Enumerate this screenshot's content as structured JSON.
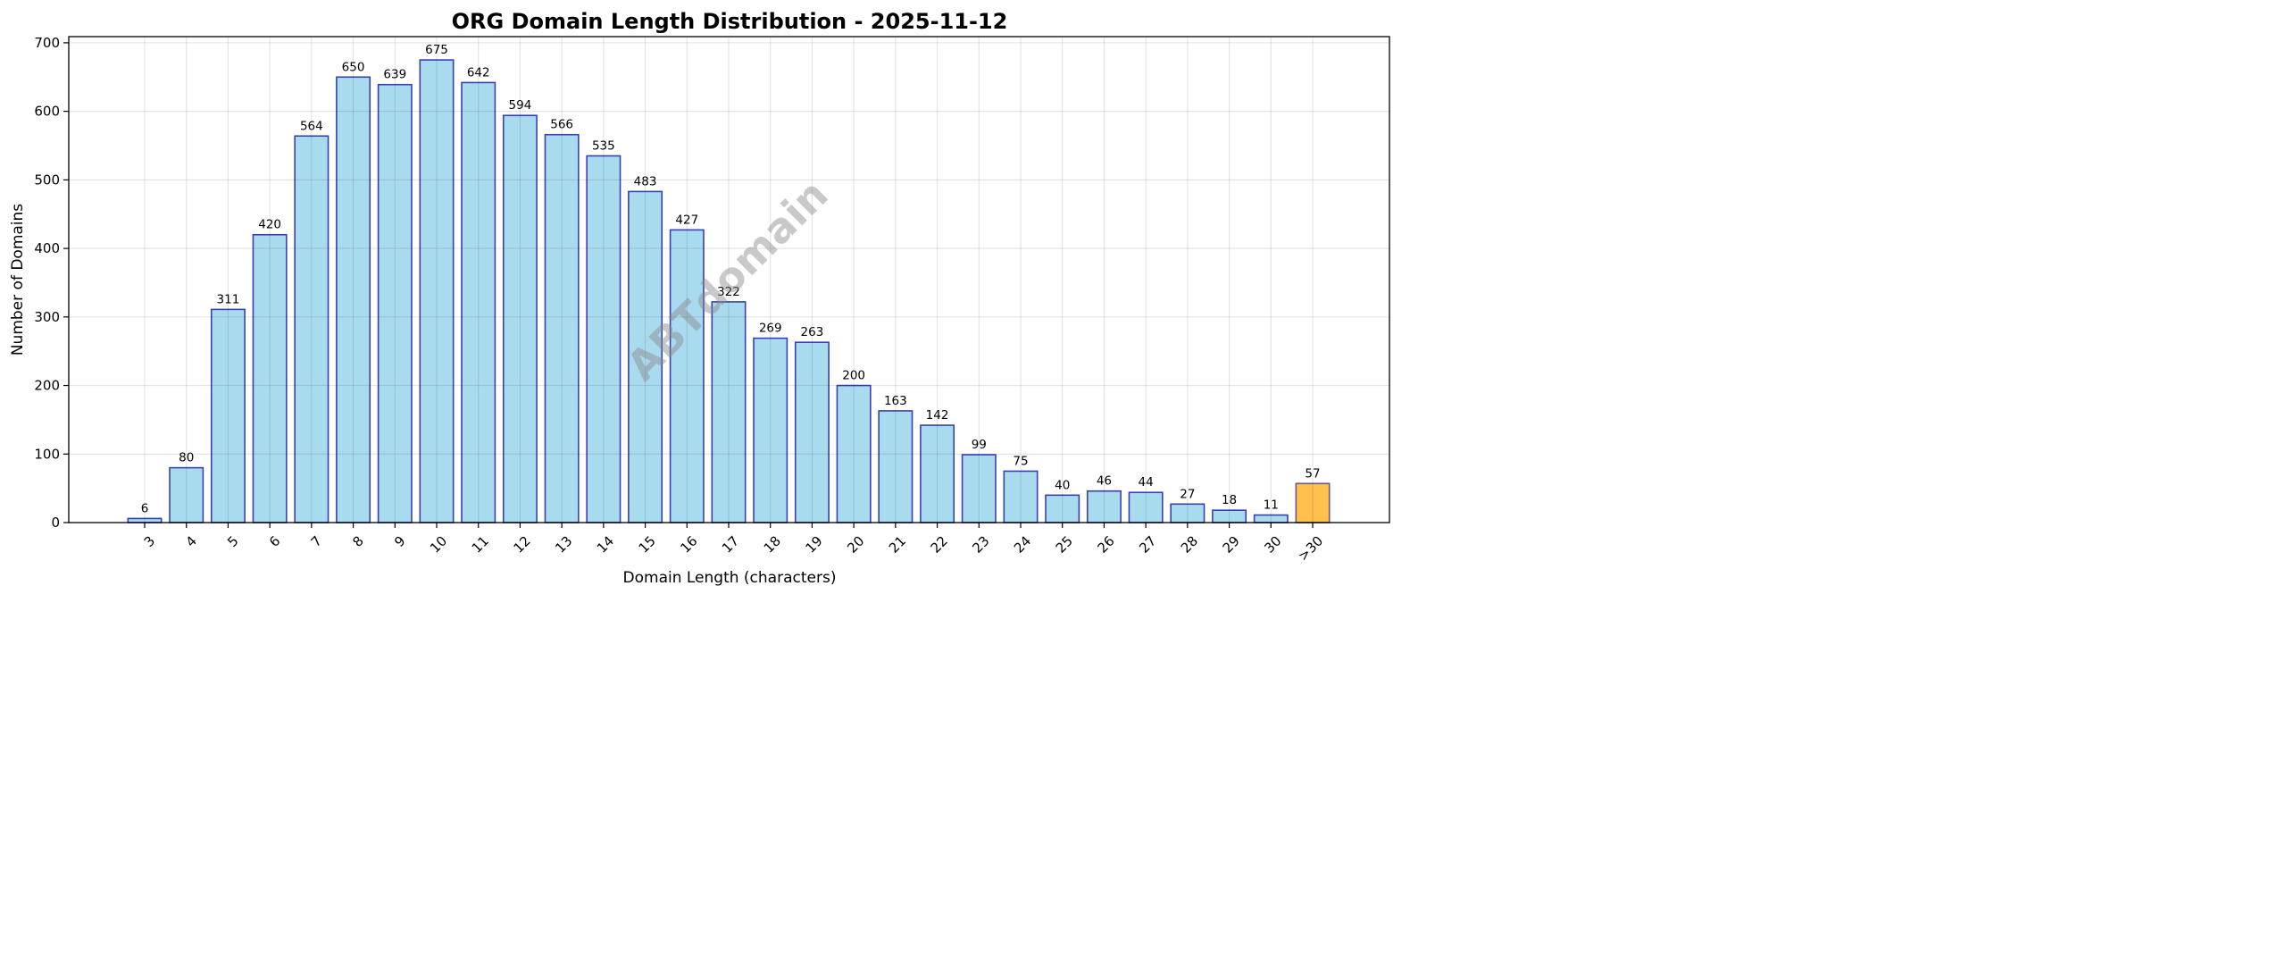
{
  "chart_data": {
    "type": "bar",
    "title": "ORG Domain Length Distribution - 2025-11-12",
    "xlabel": "Domain Length (characters)",
    "ylabel": "Number of Domains",
    "categories": [
      "3",
      "4",
      "5",
      "6",
      "7",
      "8",
      "9",
      "10",
      "11",
      "12",
      "13",
      "14",
      "15",
      "16",
      "17",
      "18",
      "19",
      "20",
      "21",
      "22",
      "23",
      "24",
      "25",
      "26",
      "27",
      "28",
      "29",
      "30",
      ">30"
    ],
    "values": [
      6,
      80,
      311,
      420,
      564,
      650,
      639,
      675,
      642,
      594,
      566,
      535,
      483,
      427,
      322,
      269,
      263,
      200,
      163,
      142,
      99,
      75,
      40,
      46,
      44,
      27,
      18,
      11,
      57
    ],
    "ylim": [
      0,
      709
    ],
    "yticks": [
      0,
      100,
      200,
      300,
      400,
      500,
      600,
      700
    ],
    "grid": true,
    "data_labels": true,
    "colors": {
      "bar": "#a9dbee",
      "bar_edge": "#3a3fb3",
      "highlight_bar": "#ffc04d",
      "highlight_edge": "#6b5a8a"
    },
    "highlight_category": ">30",
    "watermark": "ABTdomain"
  }
}
